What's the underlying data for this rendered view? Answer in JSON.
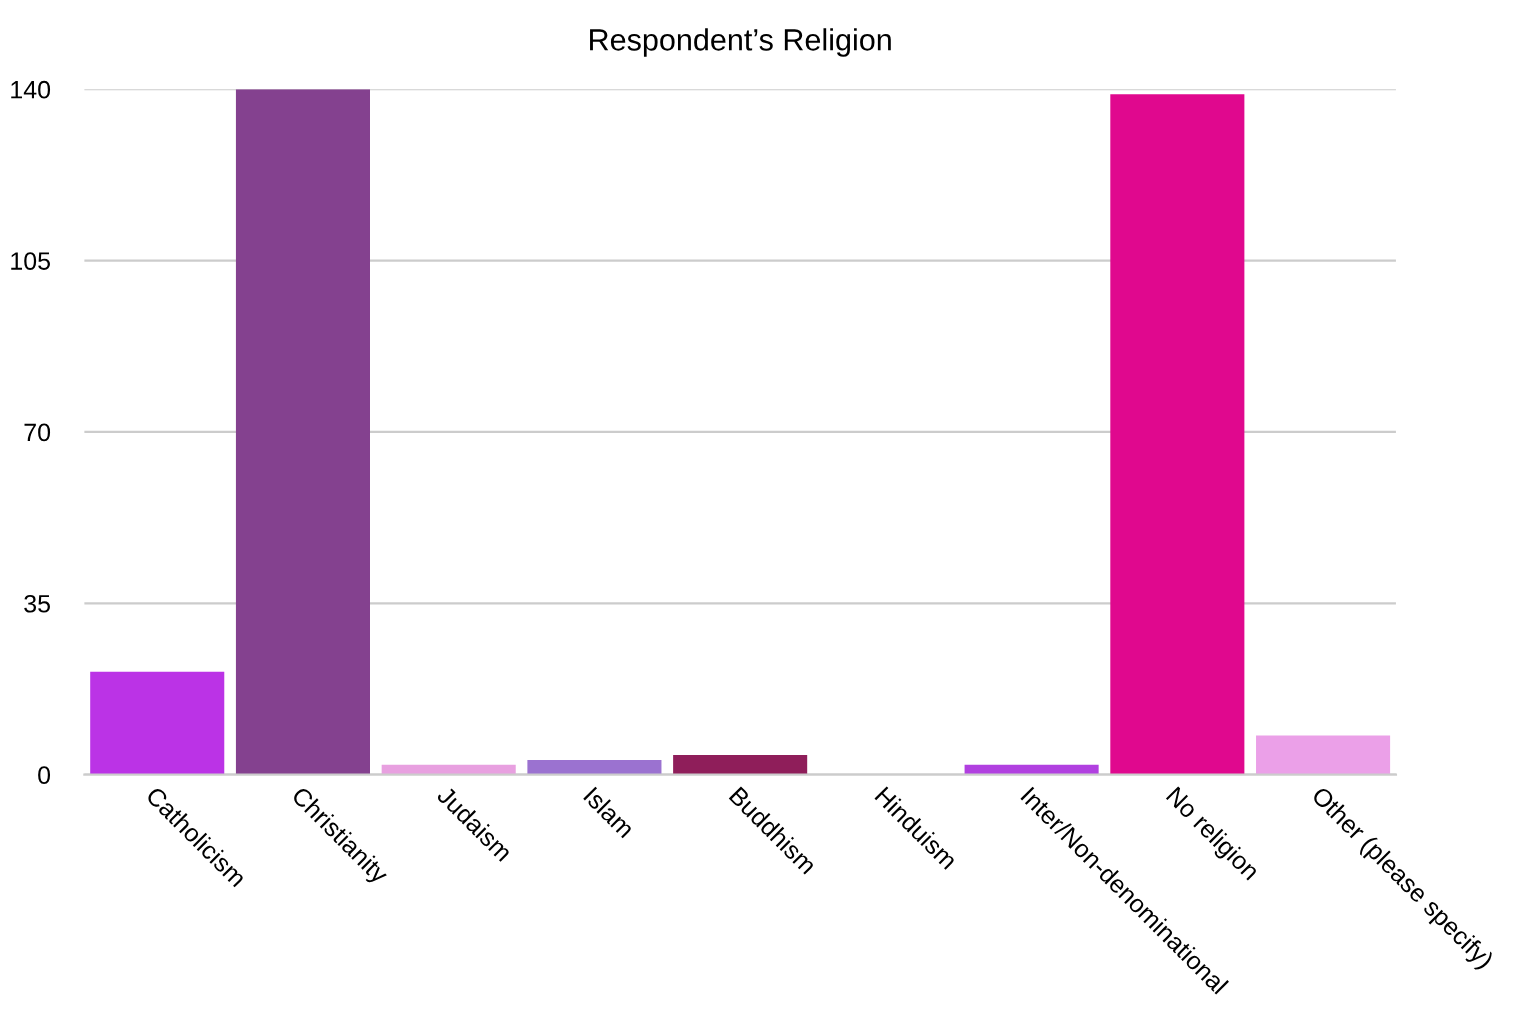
{
  "chart_data": {
    "type": "bar",
    "title": "Respondent’s Religion",
    "categories": [
      "Catholicism",
      "Christianity",
      "Judaism",
      "Islam",
      "Buddhism",
      "Hinduism",
      "Inter/Non-denominational",
      "No religion",
      "Other (please specify)"
    ],
    "values": [
      21,
      140,
      2,
      3,
      4,
      0,
      2,
      139,
      8
    ],
    "colors": [
      "#bb33e6",
      "#84418f",
      "#e8a0e0",
      "#9b72d0",
      "#8f1e5a",
      "#c050c0",
      "#b140e0",
      "#e0088e",
      "#eba0e8"
    ],
    "ylim": [
      0,
      140
    ],
    "yticks": [
      0,
      35,
      70,
      105,
      140
    ],
    "grid": "y",
    "legend": false
  }
}
